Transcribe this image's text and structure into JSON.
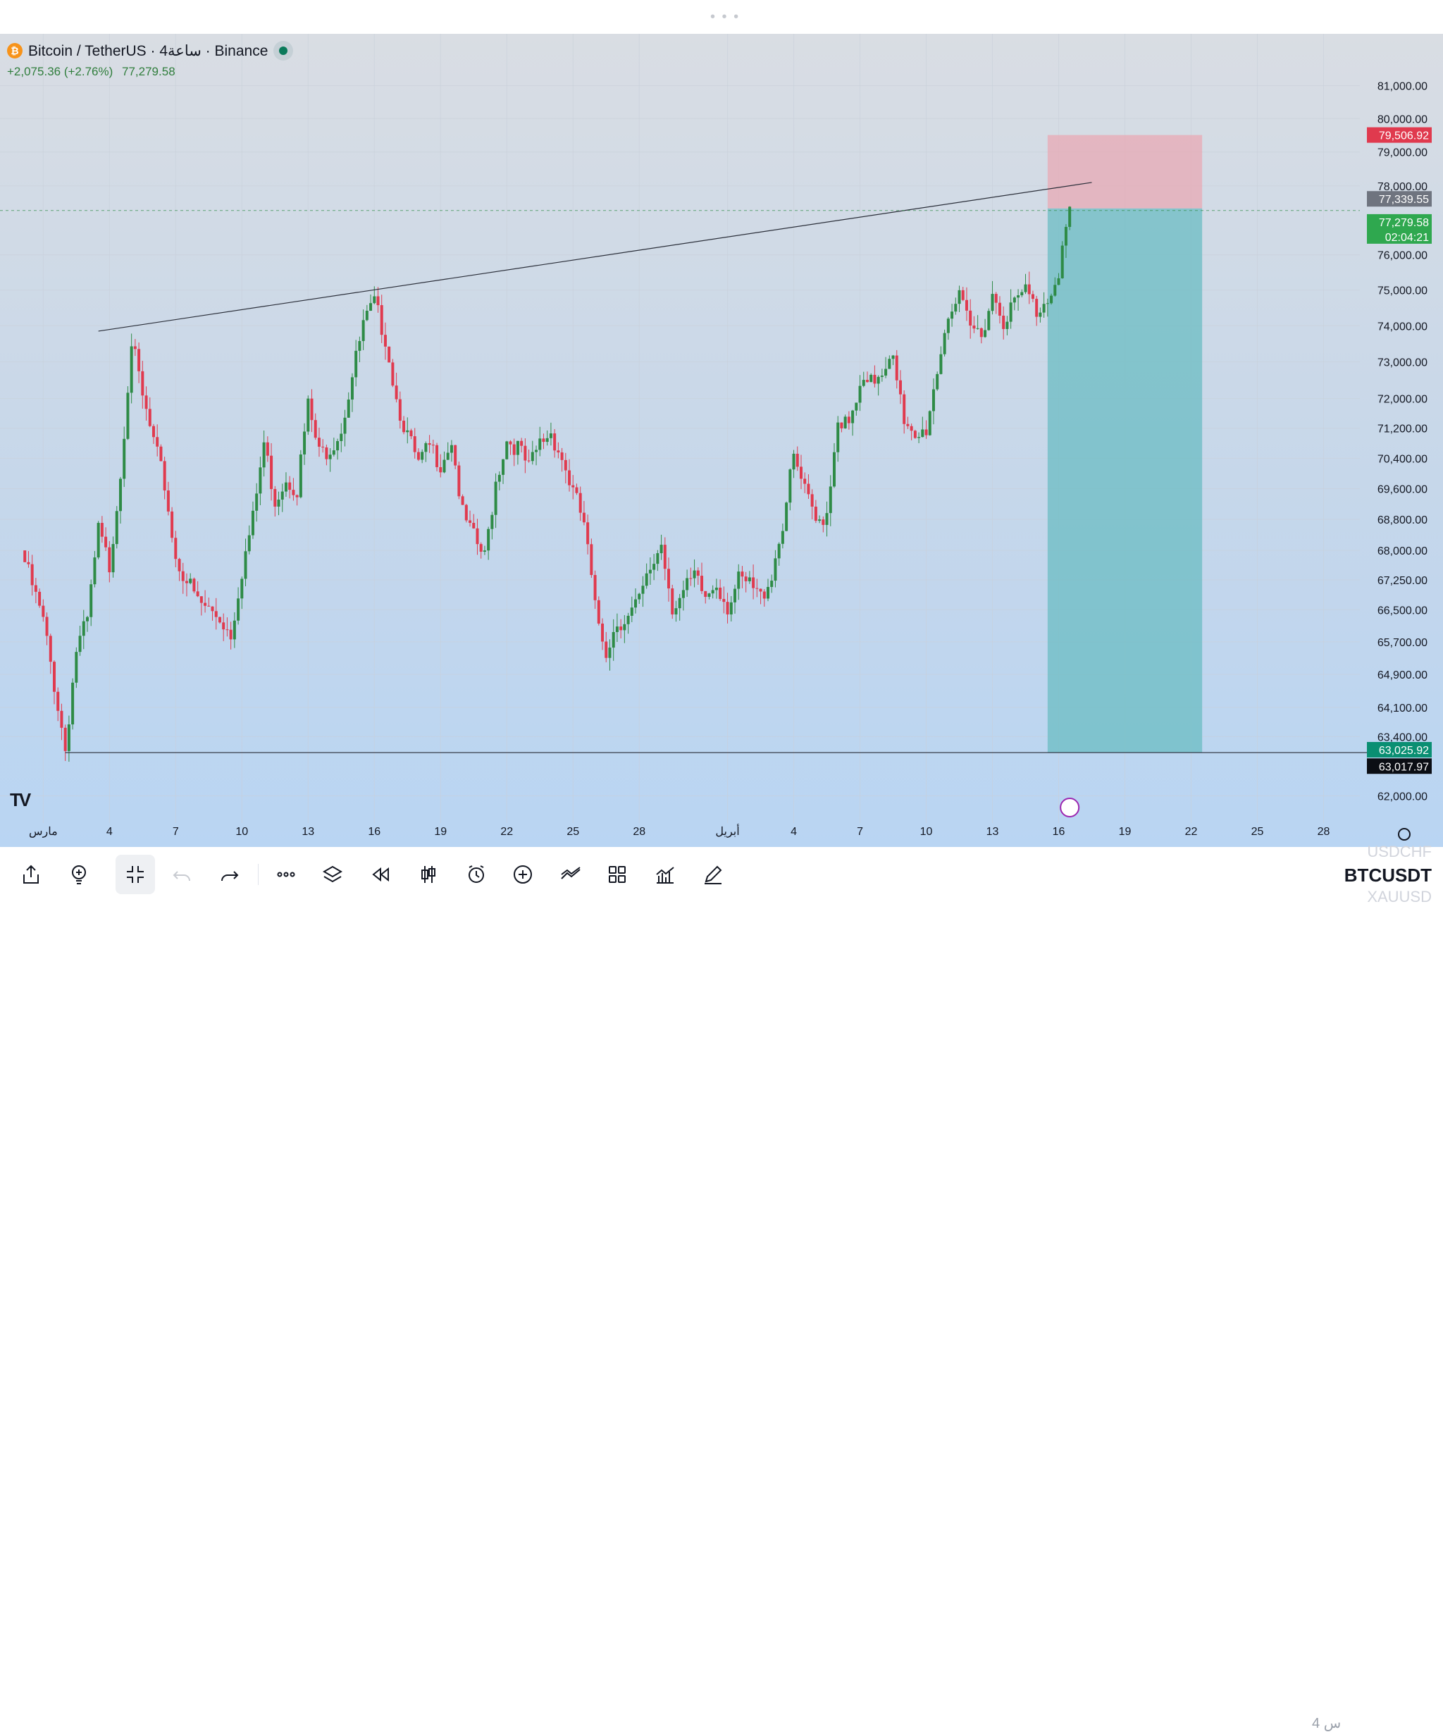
{
  "header": {
    "symbol_line": "Bitcoin / TetherUS · 4ساعة · Binance",
    "change": "+2,075.36 (+2.76%)",
    "last_price": "77,279.58"
  },
  "price_labels": {
    "stop": "79,506.92",
    "line": "77,339.55",
    "last": "77,279.58",
    "countdown": "02:04:21",
    "target": "63,025.92",
    "support": "63,017.97"
  },
  "colors": {
    "up": "#2e8b46",
    "down": "#e03a4e",
    "stop_zone": "#e8a9b4",
    "target_zone": "#6bbcc3"
  },
  "chart_data": {
    "type": "candlestick",
    "symbol": "BTCUSDT",
    "interval": "4H",
    "y_scale": "log",
    "y_ticks": [
      81000,
      80000,
      79000,
      78000,
      76000,
      75000,
      74000,
      73000,
      72000,
      71200,
      70400,
      69600,
      68800,
      68000,
      67250,
      66500,
      65700,
      64900,
      64100,
      63400,
      62000
    ],
    "y_tick_labels": [
      "81,000.00",
      "80,000.00",
      "79,000.00",
      "78,000.00",
      "76,000.00",
      "75,000.00",
      "74,000.00",
      "73,000.00",
      "72,000.00",
      "71,200.00",
      "70,400.00",
      "69,600.00",
      "68,800.00",
      "68,000.00",
      "67,250.00",
      "66,500.00",
      "65,700.00",
      "64,900.00",
      "64,100.00",
      "63,400.00",
      "62,000.00"
    ],
    "ylim": [
      61500,
      82200
    ],
    "x_start": "2025-02-28",
    "x_ticks": [
      {
        "date": "2025-03-01",
        "label": "مارس"
      },
      {
        "date": "2025-03-04",
        "label": "4"
      },
      {
        "date": "2025-03-07",
        "label": "7"
      },
      {
        "date": "2025-03-10",
        "label": "10"
      },
      {
        "date": "2025-03-13",
        "label": "13"
      },
      {
        "date": "2025-03-16",
        "label": "16"
      },
      {
        "date": "2025-03-19",
        "label": "19"
      },
      {
        "date": "2025-03-22",
        "label": "22"
      },
      {
        "date": "2025-03-25",
        "label": "25"
      },
      {
        "date": "2025-03-28",
        "label": "28"
      },
      {
        "date": "2025-04-01",
        "label": "أبريل"
      },
      {
        "date": "2025-04-04",
        "label": "4"
      },
      {
        "date": "2025-04-07",
        "label": "7"
      },
      {
        "date": "2025-04-10",
        "label": "10"
      },
      {
        "date": "2025-04-13",
        "label": "13"
      },
      {
        "date": "2025-04-16",
        "label": "16"
      },
      {
        "date": "2025-04-19",
        "label": "19"
      },
      {
        "date": "2025-04-22",
        "label": "22"
      },
      {
        "date": "2025-04-25",
        "label": "25"
      },
      {
        "date": "2025-04-28",
        "label": "28"
      }
    ],
    "close_path": [
      [
        "2025-02-28",
        68000
      ],
      [
        "2025-03-01",
        66200
      ],
      [
        "2025-03-02",
        63100
      ],
      [
        "2025-03-02 12:00",
        65500
      ],
      [
        "2025-03-03",
        66200
      ],
      [
        "2025-03-03 12:00",
        68500
      ],
      [
        "2025-03-04",
        67600
      ],
      [
        "2025-03-04 12:00",
        70000
      ],
      [
        "2025-03-05",
        73600
      ],
      [
        "2025-03-05 12:00",
        72000
      ],
      [
        "2025-03-06",
        70800
      ],
      [
        "2025-03-06 12:00",
        69700
      ],
      [
        "2025-03-07",
        67800
      ],
      [
        "2025-03-08",
        66700
      ],
      [
        "2025-03-09",
        66300
      ],
      [
        "2025-03-09 12:00",
        65900
      ],
      [
        "2025-03-10",
        67500
      ],
      [
        "2025-03-10 12:00",
        68800
      ],
      [
        "2025-03-11",
        70800
      ],
      [
        "2025-03-11 12:00",
        69300
      ],
      [
        "2025-03-12",
        69900
      ],
      [
        "2025-03-12 12:00",
        69600
      ],
      [
        "2025-03-13",
        71800
      ],
      [
        "2025-03-13 12:00",
        70500
      ],
      [
        "2025-03-14",
        70700
      ],
      [
        "2025-03-14 12:00",
        71200
      ],
      [
        "2025-03-15",
        72600
      ],
      [
        "2025-03-15 12:00",
        74000
      ],
      [
        "2025-03-16",
        74600
      ],
      [
        "2025-03-16 12:00",
        73700
      ],
      [
        "2025-03-17",
        72000
      ],
      [
        "2025-03-17 12:00",
        71000
      ],
      [
        "2025-03-18",
        70200
      ],
      [
        "2025-03-18 12:00",
        70700
      ],
      [
        "2025-03-19",
        70300
      ],
      [
        "2025-03-19 12:00",
        70900
      ],
      [
        "2025-03-20",
        68900
      ],
      [
        "2025-03-20 12:00",
        68300
      ],
      [
        "2025-03-21",
        67800
      ],
      [
        "2025-03-21 12:00",
        69800
      ],
      [
        "2025-03-22",
        70900
      ],
      [
        "2025-03-22 12:00",
        70700
      ],
      [
        "2025-03-23",
        70100
      ],
      [
        "2025-03-23 12:00",
        70800
      ],
      [
        "2025-03-24",
        71100
      ],
      [
        "2025-03-24 12:00",
        70400
      ],
      [
        "2025-03-25",
        69500
      ],
      [
        "2025-03-25 12:00",
        68700
      ],
      [
        "2025-03-26",
        66500
      ],
      [
        "2025-03-26 12:00",
        65500
      ],
      [
        "2025-03-27",
        66200
      ],
      [
        "2025-03-27 12:00",
        66300
      ],
      [
        "2025-03-28",
        66700
      ],
      [
        "2025-03-28 12:00",
        67500
      ],
      [
        "2025-03-29",
        68200
      ],
      [
        "2025-03-29 12:00",
        66600
      ],
      [
        "2025-03-30",
        66900
      ],
      [
        "2025-03-30 12:00",
        67300
      ],
      [
        "2025-03-31",
        66800
      ],
      [
        "2025-03-31 12:00",
        67200
      ],
      [
        "2025-04-01",
        66600
      ],
      [
        "2025-04-01 12:00",
        67200
      ],
      [
        "2025-04-02",
        67100
      ],
      [
        "2025-04-02 12:00",
        66800
      ],
      [
        "2025-04-03",
        67400
      ],
      [
        "2025-04-03 12:00",
        68700
      ],
      [
        "2025-04-04",
        70400
      ],
      [
        "2025-04-04 12:00",
        69500
      ],
      [
        "2025-04-05",
        68700
      ],
      [
        "2025-04-05 12:00",
        69000
      ],
      [
        "2025-04-06",
        71500
      ],
      [
        "2025-04-06 12:00",
        71200
      ],
      [
        "2025-04-07",
        72200
      ],
      [
        "2025-04-07 12:00",
        72400
      ],
      [
        "2025-04-08",
        72800
      ],
      [
        "2025-04-08 12:00",
        73400
      ],
      [
        "2025-04-09",
        71200
      ],
      [
        "2025-04-09 12:00",
        70800
      ],
      [
        "2025-04-10",
        71200
      ],
      [
        "2025-04-10 12:00",
        72800
      ],
      [
        "2025-04-11",
        74400
      ],
      [
        "2025-04-11 12:00",
        74700
      ],
      [
        "2025-04-12",
        73900
      ],
      [
        "2025-04-12 12:00",
        73800
      ],
      [
        "2025-04-13",
        74900
      ],
      [
        "2025-04-13 12:00",
        74200
      ],
      [
        "2025-04-14",
        74600
      ],
      [
        "2025-04-14 12:00",
        75000
      ],
      [
        "2025-04-15",
        74400
      ],
      [
        "2025-04-15 12:00",
        74800
      ],
      [
        "2025-04-16",
        75600
      ],
      [
        "2025-04-16 12:00",
        77280
      ]
    ],
    "trendlines": [
      {
        "from": [
          "2025-03-03 12:00",
          73850
        ],
        "to": [
          "2025-04-17 12:00",
          78100
        ]
      },
      {
        "from": [
          "2025-03-02",
          63017.97
        ],
        "to": [
          "2025-04-30",
          63017.97
        ]
      }
    ],
    "position": {
      "type": "short",
      "from": "2025-04-15 12:00",
      "to": "2025-04-22 12:00",
      "entry": 77339.55,
      "stop": 79506.92,
      "target": 63025.92
    }
  },
  "toolbar": {
    "tools": [
      "share-icon",
      "idea-icon",
      "collapse-icon",
      "undo-icon",
      "redo-icon",
      "more-icon",
      "layers-icon",
      "replay-icon",
      "candles-icon",
      "alert-icon",
      "add-icon",
      "drawings-icon",
      "layout-icon",
      "indicators-icon",
      "pencil-icon"
    ],
    "interval_label": "4 س",
    "symbols": {
      "above": "USDCHF",
      "current": "BTCUSDT",
      "below": "XAUUSD"
    }
  }
}
